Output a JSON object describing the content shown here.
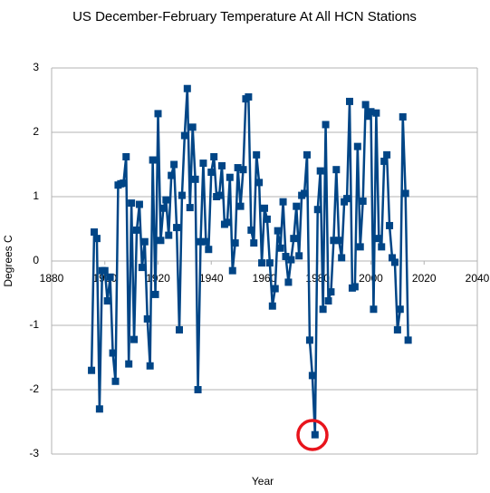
{
  "chart_data": {
    "type": "line",
    "title": "US December-February Temperature At All HCN Stations",
    "x_label": "Year",
    "y_label": "Degrees C",
    "x": [
      1895,
      1896,
      1897,
      1898,
      1899,
      1900,
      1901,
      1902,
      1903,
      1904,
      1905,
      1906,
      1907,
      1908,
      1909,
      1910,
      1911,
      1912,
      1913,
      1914,
      1915,
      1916,
      1917,
      1918,
      1919,
      1920,
      1921,
      1922,
      1923,
      1924,
      1925,
      1926,
      1927,
      1928,
      1929,
      1930,
      1931,
      1932,
      1933,
      1934,
      1935,
      1936,
      1937,
      1938,
      1939,
      1940,
      1941,
      1942,
      1943,
      1944,
      1945,
      1946,
      1947,
      1948,
      1949,
      1950,
      1951,
      1952,
      1953,
      1954,
      1955,
      1956,
      1957,
      1958,
      1959,
      1960,
      1961,
      1962,
      1963,
      1964,
      1965,
      1966,
      1967,
      1968,
      1969,
      1970,
      1971,
      1972,
      1973,
      1974,
      1975,
      1976,
      1977,
      1978,
      1979,
      1980,
      1981,
      1982,
      1983,
      1984,
      1985,
      1986,
      1987,
      1988,
      1989,
      1990,
      1991,
      1992,
      1993,
      1994,
      1995,
      1996,
      1997,
      1998,
      1999,
      2000,
      2001,
      2002,
      2003,
      2004,
      2005,
      2006,
      2007,
      2008,
      2009,
      2010,
      2011,
      2012,
      2013,
      2014
    ],
    "series": [
      {
        "name": "Degrees C",
        "color": "#004586",
        "values": [
          -1.7,
          0.45,
          0.35,
          -2.3,
          -0.15,
          -0.15,
          -0.62,
          -0.25,
          -1.43,
          -1.87,
          1.18,
          1.2,
          1.21,
          1.62,
          -1.6,
          0.9,
          -1.22,
          0.48,
          0.88,
          -0.1,
          0.3,
          -0.9,
          -1.63,
          1.57,
          -0.52,
          2.29,
          0.32,
          0.82,
          0.95,
          0.4,
          1.33,
          1.5,
          0.52,
          -1.07,
          1.02,
          1.95,
          2.68,
          0.83,
          2.08,
          1.27,
          -2.0,
          0.3,
          1.52,
          0.3,
          0.18,
          1.38,
          1.62,
          1.0,
          1.02,
          1.48,
          0.57,
          0.6,
          1.3,
          -0.15,
          0.28,
          1.45,
          0.85,
          1.42,
          2.52,
          2.55,
          0.48,
          0.28,
          1.65,
          1.22,
          -0.03,
          0.82,
          0.65,
          -0.03,
          -0.7,
          -0.43,
          0.47,
          0.2,
          0.92,
          0.07,
          -0.33,
          0.02,
          0.35,
          0.85,
          0.08,
          1.02,
          1.05,
          1.65,
          -1.23,
          -1.78,
          -2.7,
          0.8,
          1.4,
          -0.75,
          2.12,
          -0.62,
          -0.48,
          0.32,
          1.42,
          0.32,
          0.05,
          0.92,
          0.97,
          2.48,
          -0.42,
          -0.4,
          1.78,
          0.22,
          0.93,
          2.43,
          2.25,
          2.32,
          -0.75,
          2.3,
          0.35,
          0.22,
          1.55,
          1.65,
          0.55,
          0.05,
          -0.02,
          -1.07,
          -0.75,
          2.24,
          1.05,
          -1.23
        ]
      }
    ],
    "xlim": [
      1880,
      2040
    ],
    "xticks": [
      1880,
      1900,
      1920,
      1940,
      1960,
      1980,
      2000,
      2020,
      2040
    ],
    "ylim": [
      -3,
      3
    ],
    "yticks": [
      -3,
      -2,
      -1,
      0,
      1,
      2,
      3
    ],
    "grid": true
  }
}
